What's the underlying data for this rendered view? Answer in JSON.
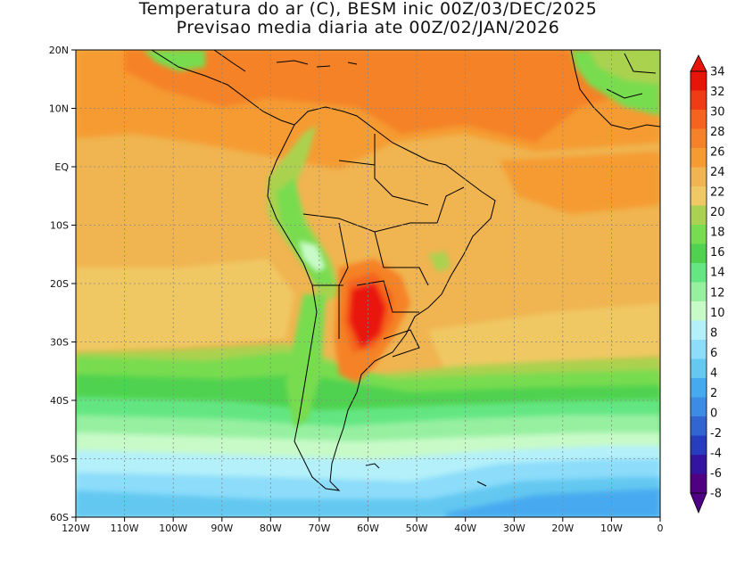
{
  "title": {
    "line1": "Temperatura do ar (C), BESM inic 00Z/03/DEC/2025",
    "line2": "Previsao media diaria ate 00Z/02/JAN/2026"
  },
  "map": {
    "lon_labels": [
      "120W",
      "110W",
      "100W",
      "90W",
      "80W",
      "70W",
      "60W",
      "50W",
      "40W",
      "30W",
      "20W",
      "10W",
      "0"
    ],
    "lat_labels": [
      "20N",
      "10N",
      "EQ",
      "10S",
      "20S",
      "30S",
      "40S",
      "50S",
      "60S"
    ],
    "extent": {
      "lon_min": -120,
      "lon_max": 0,
      "lat_min": -60,
      "lat_max": 20
    }
  },
  "colorbar": {
    "labels": [
      "34",
      "32",
      "30",
      "28",
      "26",
      "24",
      "22",
      "20",
      "18",
      "16",
      "14",
      "12",
      "10",
      "8",
      "6",
      "4",
      "2",
      "0",
      "-2",
      "-4",
      "-6",
      "-8"
    ],
    "colors": [
      "#e8140a",
      "#f03c14",
      "#f5641e",
      "#f58228",
      "#f59b32",
      "#f0b450",
      "#f0c864",
      "#aad250",
      "#78dc50",
      "#50d250",
      "#64e682",
      "#96f0a0",
      "#c8fac8",
      "#b4f0fa",
      "#8cdcfa",
      "#64c8f0",
      "#46aaf0",
      "#3c8ce6",
      "#3264d2",
      "#283cbe",
      "#3214a0",
      "#500082"
    ],
    "min_label": "-8",
    "max_label": "34"
  }
}
